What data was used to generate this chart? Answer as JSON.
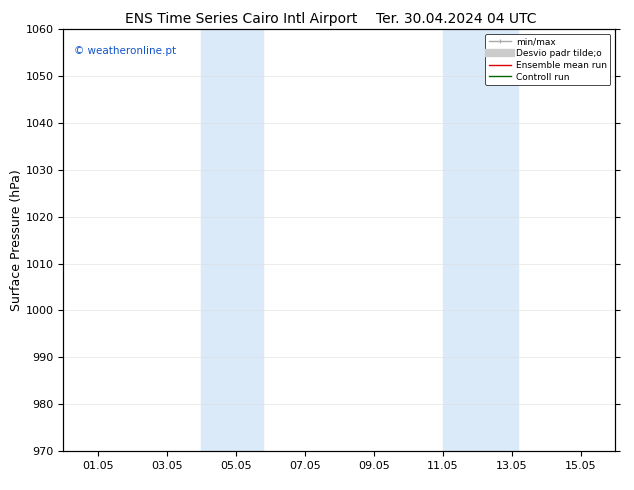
{
  "title_left": "ENS Time Series Cairo Intl Airport",
  "title_right": "Ter. 30.04.2024 04 UTC",
  "ylabel": "Surface Pressure (hPa)",
  "ylim": [
    970,
    1060
  ],
  "yticks": [
    970,
    980,
    990,
    1000,
    1010,
    1020,
    1030,
    1040,
    1050,
    1060
  ],
  "xtick_labels": [
    "01.05",
    "03.05",
    "05.05",
    "07.05",
    "09.05",
    "11.05",
    "13.05",
    "15.05"
  ],
  "xtick_positions": [
    1,
    3,
    5,
    7,
    9,
    11,
    13,
    15
  ],
  "xlim": [
    0,
    16
  ],
  "shaded_bands": [
    {
      "x_start": 4.0,
      "x_end": 5.8,
      "color": "#daeaf8"
    },
    {
      "x_start": 11.0,
      "x_end": 13.2,
      "color": "#daeaf8"
    }
  ],
  "background_color": "#ffffff",
  "plot_bg_color": "#ffffff",
  "watermark_text": "© weatheronline.pt",
  "watermark_color": "#1155cc",
  "legend_labels": [
    "min/max",
    "Desvio padr tilde;o",
    "Ensemble mean run",
    "Controll run"
  ],
  "legend_colors": [
    "#aaaaaa",
    "#cccccc",
    "#dd0000",
    "#006600"
  ],
  "legend_lw": [
    1.0,
    6,
    1.0,
    1.0
  ],
  "title_fontsize": 10,
  "tick_fontsize": 8,
  "ylabel_fontsize": 9
}
